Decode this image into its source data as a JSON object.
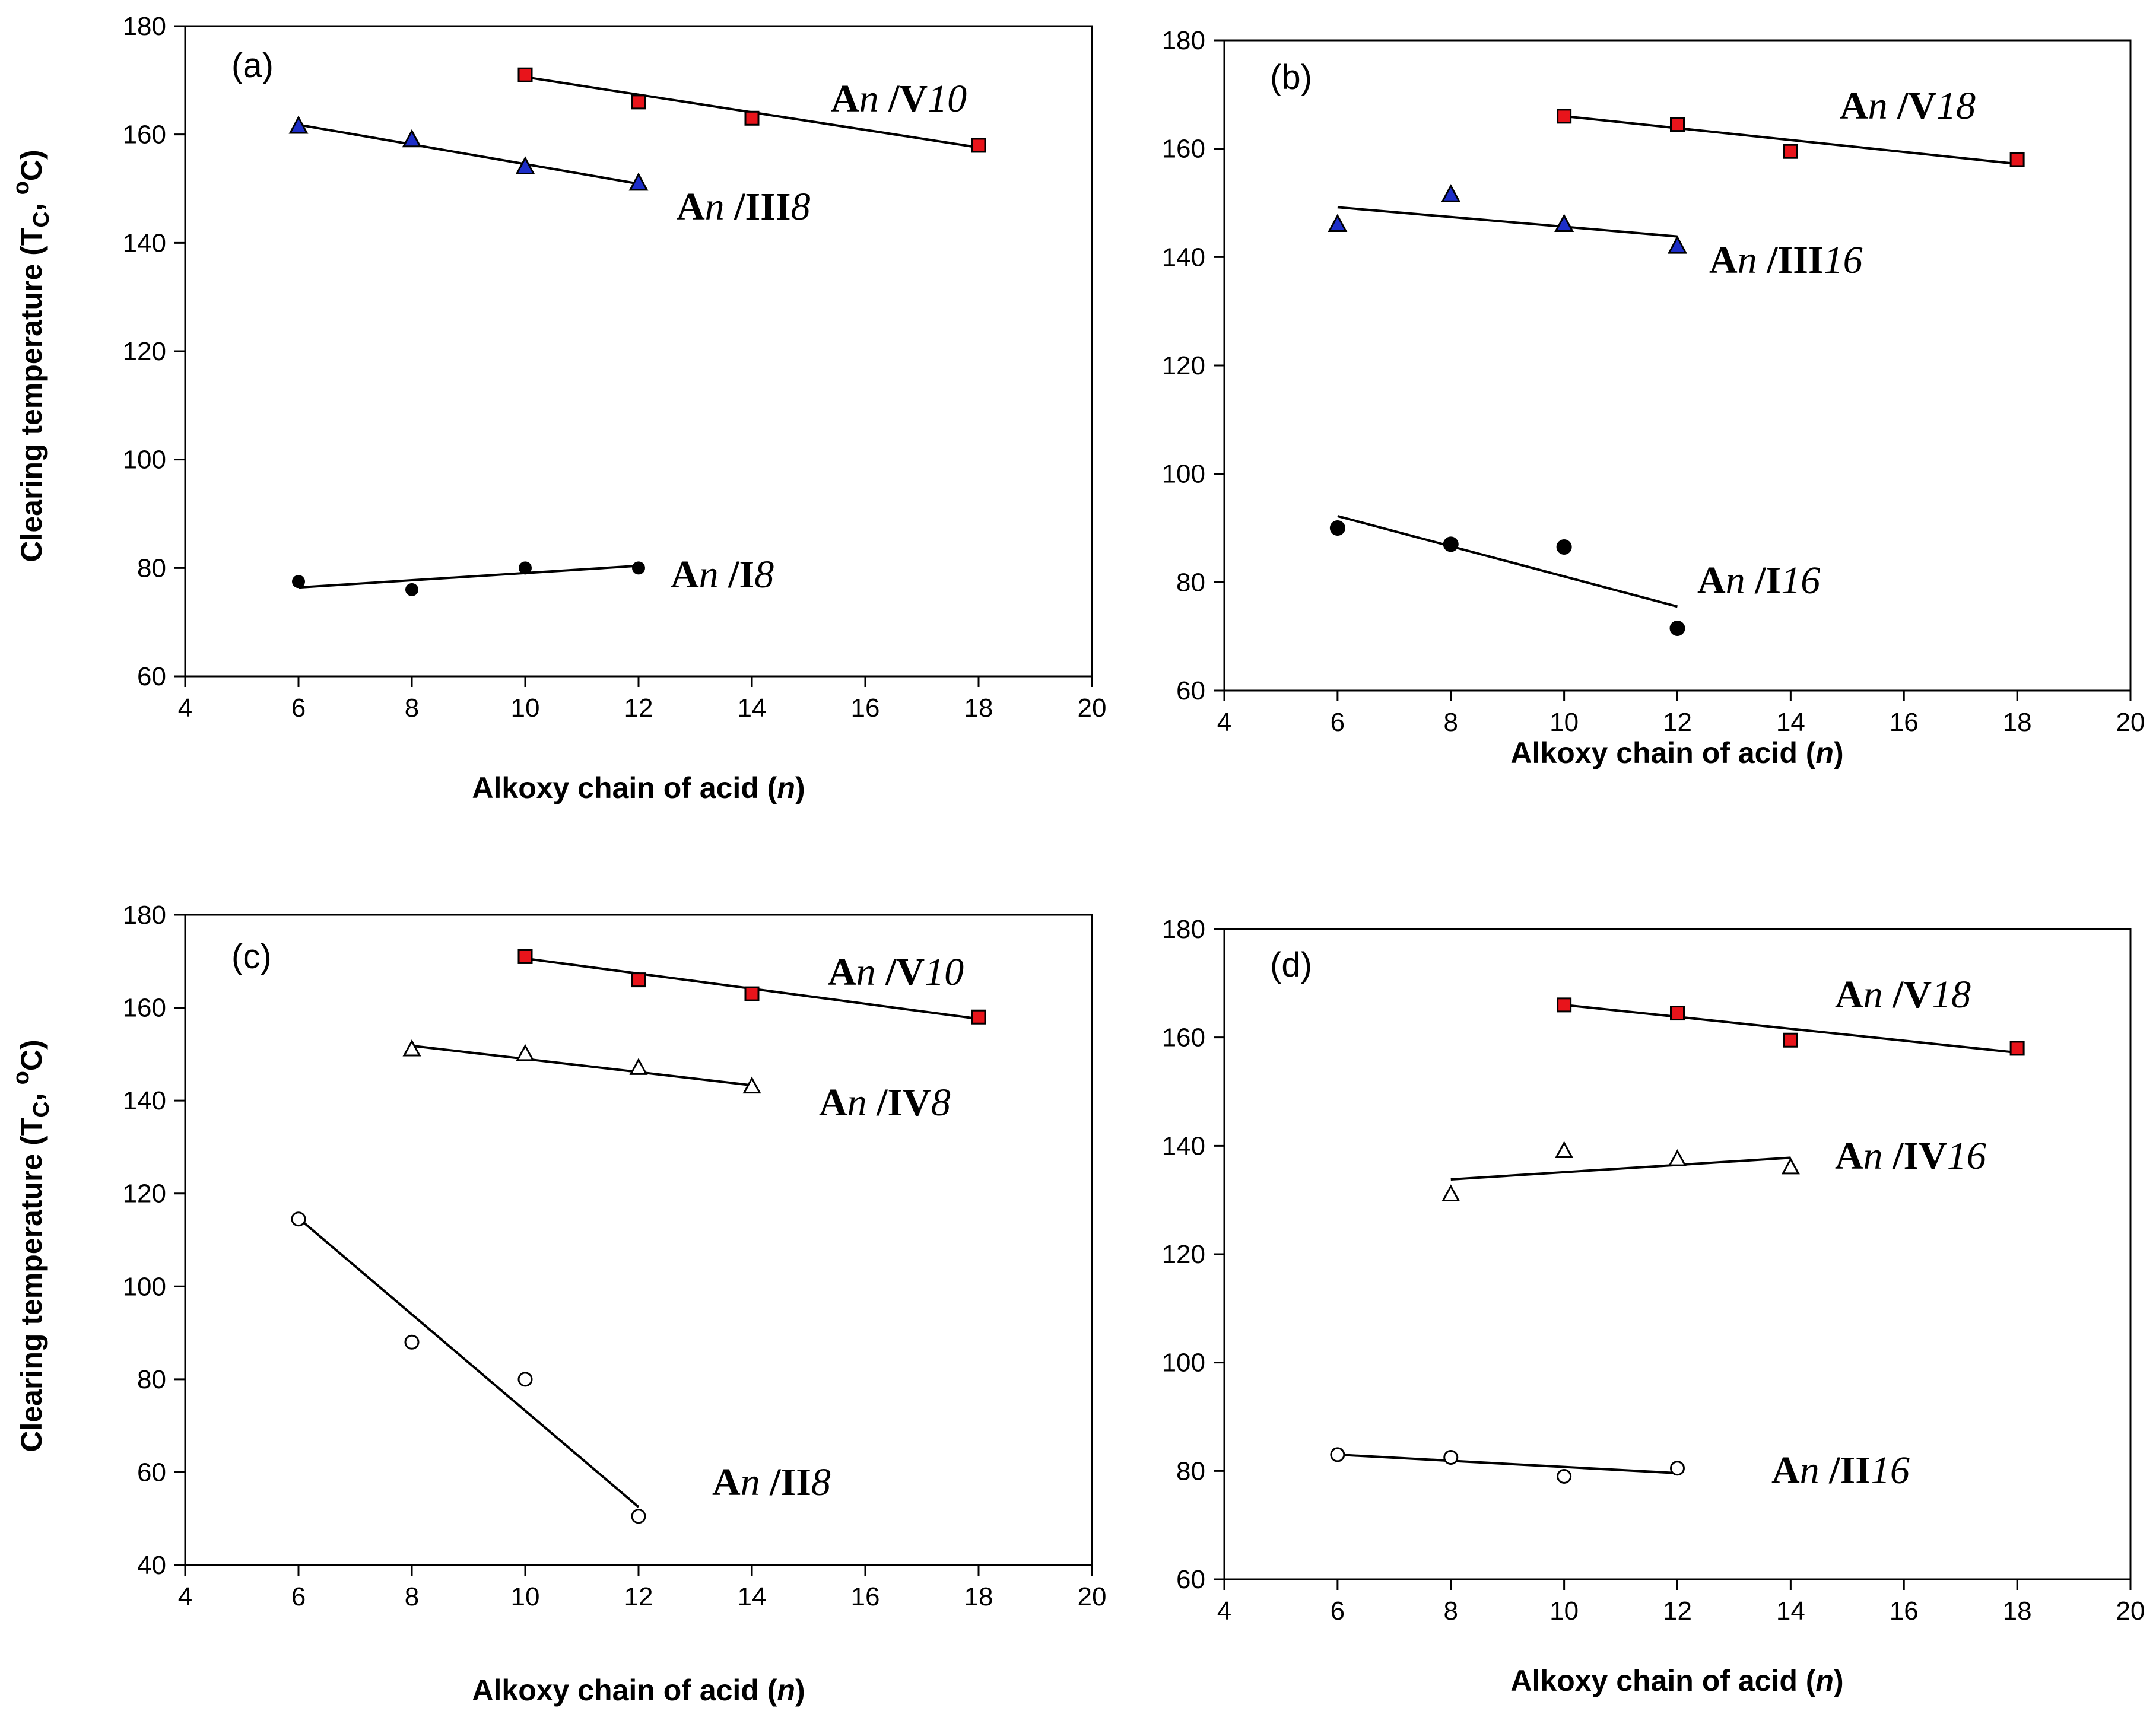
{
  "chart_data": [
    {
      "type": "scatter",
      "panel": "(a)",
      "xlabel": "Alkoxy chain of acid",
      "xlabel_var": "n",
      "ylabel": "Clearing temperature (T",
      "ylabel_sub": "C",
      "ylabel_tail": ", ",
      "ylabel_sup": "o",
      "ylabel_end": "C)",
      "xlim": [
        4,
        20
      ],
      "ylim": [
        60,
        180
      ],
      "xticks": [
        4,
        6,
        8,
        10,
        12,
        14,
        16,
        18,
        20
      ],
      "yticks": [
        60,
        80,
        100,
        120,
        140,
        160,
        180
      ],
      "series": [
        {
          "name": "An /V10",
          "label": {
            "a": "A",
            "n": "n",
            "mid": " /V",
            "num": "10"
          },
          "marker": "square",
          "color": "#e8141b",
          "x": [
            10,
            12,
            14,
            18
          ],
          "y": [
            171,
            166,
            163,
            158
          ],
          "fit": [
            [
              10,
              170.6
            ],
            [
              18,
              157.6
            ]
          ]
        },
        {
          "name": "An /III8",
          "label": {
            "a": "A",
            "n": "n",
            "mid": " /III",
            "num": "8"
          },
          "marker": "triangle",
          "color": "#1d2ec8",
          "x": [
            6,
            8,
            10,
            12
          ],
          "y": [
            161.5,
            159,
            154,
            151
          ],
          "fit": [
            [
              6,
              161.8
            ],
            [
              12,
              150.9
            ]
          ]
        },
        {
          "name": "An /I8",
          "label": {
            "a": "A",
            "n": "n",
            "mid": " /I",
            "num": "8"
          },
          "marker": "circle",
          "color": "#000000",
          "x": [
            6,
            8,
            10,
            12
          ],
          "y": [
            77.5,
            76,
            80,
            80
          ],
          "fit": [
            [
              6,
              76.4
            ],
            [
              12,
              80.4
            ]
          ]
        }
      ]
    },
    {
      "type": "scatter",
      "panel": "(b)",
      "xlabel": "Alkoxy chain of acid",
      "xlabel_var": "n",
      "ylabel": "",
      "xlim": [
        4,
        20
      ],
      "ylim": [
        60,
        180
      ],
      "xticks": [
        4,
        6,
        8,
        10,
        12,
        14,
        16,
        18,
        20
      ],
      "yticks": [
        60,
        80,
        100,
        120,
        140,
        160,
        180
      ],
      "series": [
        {
          "name": "An /V18",
          "label": {
            "a": "A",
            "n": "n",
            "mid": " /V",
            "num": "18"
          },
          "marker": "square",
          "color": "#e8141b",
          "x": [
            10,
            12,
            14,
            18
          ],
          "y": [
            166,
            164.5,
            159.5,
            158
          ],
          "fit": [
            [
              10,
              166
            ],
            [
              18,
              157.2
            ]
          ]
        },
        {
          "name": "An /III16",
          "label": {
            "a": "A",
            "n": "n",
            "mid": " /III",
            "num": "16"
          },
          "marker": "triangle",
          "color": "#1d2ec8",
          "x": [
            6,
            8,
            10,
            12
          ],
          "y": [
            146,
            151.5,
            146,
            142
          ],
          "fit": [
            [
              6,
              149.2
            ],
            [
              12,
              143.8
            ]
          ]
        },
        {
          "name": "An /I16",
          "label": {
            "a": "A",
            "n": "n",
            "mid": " /I",
            "num": "16"
          },
          "marker": "circle-filled-large",
          "color": "#000000",
          "x": [
            6,
            8,
            10,
            12
          ],
          "y": [
            90,
            87,
            86.5,
            71.5
          ],
          "fit": [
            [
              6,
              92.2
            ],
            [
              12,
              75.5
            ]
          ]
        }
      ]
    },
    {
      "type": "scatter",
      "panel": "(c)",
      "xlabel": "Alkoxy chain of acid",
      "xlabel_var": "n",
      "ylabel": "Clearing temperature (T",
      "ylabel_sub": "C",
      "ylabel_tail": ", ",
      "ylabel_sup": "o",
      "ylabel_end": "C)",
      "xlim": [
        4,
        20
      ],
      "ylim": [
        40,
        180
      ],
      "xticks": [
        4,
        6,
        8,
        10,
        12,
        14,
        16,
        18,
        20
      ],
      "yticks": [
        40,
        60,
        80,
        100,
        120,
        140,
        160,
        180
      ],
      "series": [
        {
          "name": "An /V10",
          "label": {
            "a": "A",
            "n": "n",
            "mid": " /V",
            "num": "10"
          },
          "marker": "square",
          "color": "#e8141b",
          "x": [
            10,
            12,
            14,
            18
          ],
          "y": [
            171,
            166,
            163,
            158
          ],
          "fit": [
            [
              10,
              170.6
            ],
            [
              18,
              157.6
            ]
          ]
        },
        {
          "name": "An /IV8",
          "label": {
            "a": "A",
            "n": "n",
            "mid": " /IV",
            "num": "8"
          },
          "marker": "triangle-open",
          "color": "#000000",
          "x": [
            8,
            10,
            12,
            14
          ],
          "y": [
            151,
            150,
            147,
            143
          ],
          "fit": [
            [
              8,
              151.8
            ],
            [
              14,
              143.3
            ]
          ]
        },
        {
          "name": "An /II8",
          "label": {
            "a": "A",
            "n": "n",
            "mid": " /II",
            "num": "8"
          },
          "marker": "circle-open",
          "color": "#000000",
          "x": [
            6,
            8,
            10,
            12
          ],
          "y": [
            114.5,
            88,
            80,
            50.5
          ],
          "fit": [
            [
              6,
              114.7
            ],
            [
              12,
              52.5
            ]
          ]
        }
      ]
    },
    {
      "type": "scatter",
      "panel": "(d)",
      "xlabel": "Alkoxy chain of acid",
      "xlabel_var": "n",
      "ylabel": "",
      "xlim": [
        4,
        20
      ],
      "ylim": [
        60,
        180
      ],
      "xticks": [
        4,
        6,
        8,
        10,
        12,
        14,
        16,
        18,
        20
      ],
      "yticks": [
        60,
        80,
        100,
        120,
        140,
        160,
        180
      ],
      "series": [
        {
          "name": "An /V18",
          "label": {
            "a": "A",
            "n": "n",
            "mid": " /V",
            "num": "18"
          },
          "marker": "square",
          "color": "#e8141b",
          "x": [
            10,
            12,
            14,
            18
          ],
          "y": [
            166,
            164.5,
            159.5,
            158
          ],
          "fit": [
            [
              10,
              166
            ],
            [
              18,
              157.2
            ]
          ]
        },
        {
          "name": "An /IV16",
          "label": {
            "a": "A",
            "n": "n",
            "mid": " /IV",
            "num": "16"
          },
          "marker": "triangle-open",
          "color": "#000000",
          "x": [
            8,
            10,
            12,
            14
          ],
          "y": [
            131,
            139,
            137.5,
            136
          ],
          "fit": [
            [
              8,
              133.8
            ],
            [
              14,
              137.8
            ]
          ]
        },
        {
          "name": "An /II16",
          "label": {
            "a": "A",
            "n": "n",
            "mid": " /II",
            "num": "16"
          },
          "marker": "circle-open",
          "color": "#000000",
          "x": [
            6,
            8,
            10,
            12
          ],
          "y": [
            83,
            82.5,
            79,
            80.5
          ],
          "fit": [
            [
              6,
              83
            ],
            [
              12,
              79.6
            ]
          ]
        }
      ]
    }
  ]
}
